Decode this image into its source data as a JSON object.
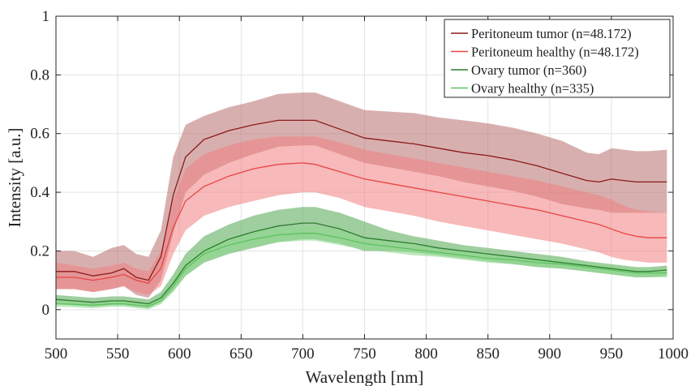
{
  "chart_data": {
    "type": "area",
    "xlabel": "Wavelength [nm]",
    "ylabel": "Intensity [a.u.]",
    "xlim": [
      500,
      1000
    ],
    "ylim": [
      -0.1,
      1.0
    ],
    "x_ticks": [
      500,
      550,
      600,
      650,
      700,
      750,
      800,
      850,
      900,
      950,
      1000
    ],
    "y_ticks": [
      0,
      0.2,
      0.4,
      0.6,
      0.8,
      1
    ],
    "x_tick_labels": [
      "500",
      "550",
      "600",
      "650",
      "700",
      "750",
      "800",
      "850",
      "900",
      "950",
      "1000"
    ],
    "y_tick_labels": [
      "0",
      "0.2",
      "0.4",
      "0.6",
      "0.8",
      "1"
    ],
    "grid": true,
    "legend_position": "top-right",
    "x": [
      500,
      515,
      530,
      545,
      555,
      565,
      575,
      585,
      595,
      605,
      620,
      640,
      660,
      680,
      700,
      710,
      730,
      750,
      770,
      790,
      810,
      830,
      850,
      870,
      890,
      910,
      930,
      940,
      950,
      960,
      970,
      980,
      995
    ],
    "series": [
      {
        "name": "Peritoneum tumor (n=48.172)",
        "color": "#8b1a1a",
        "band_color": "#b86e6e",
        "band_opacity": 0.55,
        "mean": [
          0.13,
          0.13,
          0.115,
          0.125,
          0.14,
          0.11,
          0.1,
          0.18,
          0.39,
          0.52,
          0.58,
          0.61,
          0.63,
          0.645,
          0.645,
          0.645,
          0.615,
          0.585,
          0.575,
          0.565,
          0.55,
          0.535,
          0.525,
          0.51,
          0.49,
          0.465,
          0.44,
          0.435,
          0.445,
          0.44,
          0.435,
          0.435,
          0.435
        ],
        "upper": [
          0.2,
          0.2,
          0.18,
          0.21,
          0.22,
          0.19,
          0.18,
          0.27,
          0.52,
          0.63,
          0.66,
          0.69,
          0.71,
          0.735,
          0.74,
          0.74,
          0.71,
          0.68,
          0.675,
          0.67,
          0.655,
          0.645,
          0.635,
          0.62,
          0.6,
          0.575,
          0.535,
          0.53,
          0.55,
          0.545,
          0.54,
          0.54,
          0.545
        ],
        "lower": [
          0.07,
          0.07,
          0.06,
          0.07,
          0.08,
          0.05,
          0.04,
          0.1,
          0.26,
          0.4,
          0.46,
          0.5,
          0.53,
          0.555,
          0.56,
          0.56,
          0.53,
          0.5,
          0.485,
          0.47,
          0.455,
          0.435,
          0.42,
          0.405,
          0.385,
          0.36,
          0.345,
          0.34,
          0.33,
          0.33,
          0.33,
          0.33,
          0.33
        ]
      },
      {
        "name": "Peritoneum healthy (n=48.172)",
        "color": "#e84545",
        "band_color": "#f08080",
        "band_opacity": 0.55,
        "mean": [
          0.11,
          0.11,
          0.1,
          0.11,
          0.12,
          0.1,
          0.09,
          0.14,
          0.28,
          0.37,
          0.42,
          0.455,
          0.48,
          0.495,
          0.5,
          0.495,
          0.47,
          0.445,
          0.43,
          0.415,
          0.4,
          0.385,
          0.37,
          0.355,
          0.34,
          0.32,
          0.3,
          0.29,
          0.275,
          0.26,
          0.25,
          0.245,
          0.245
        ],
        "upper": [
          0.16,
          0.15,
          0.14,
          0.15,
          0.16,
          0.14,
          0.13,
          0.2,
          0.37,
          0.48,
          0.53,
          0.56,
          0.58,
          0.59,
          0.59,
          0.59,
          0.57,
          0.545,
          0.53,
          0.515,
          0.5,
          0.485,
          0.47,
          0.455,
          0.44,
          0.42,
          0.4,
          0.39,
          0.375,
          0.355,
          0.34,
          0.335,
          0.33
        ],
        "lower": [
          0.07,
          0.07,
          0.06,
          0.07,
          0.08,
          0.06,
          0.05,
          0.08,
          0.19,
          0.27,
          0.32,
          0.35,
          0.37,
          0.39,
          0.4,
          0.4,
          0.38,
          0.35,
          0.335,
          0.32,
          0.3,
          0.285,
          0.27,
          0.255,
          0.24,
          0.225,
          0.205,
          0.195,
          0.18,
          0.17,
          0.165,
          0.16,
          0.16
        ]
      },
      {
        "name": "Ovary tumor (n=360)",
        "color": "#2e7d2e",
        "band_color": "#5fae5f",
        "band_opacity": 0.6,
        "mean": [
          0.035,
          0.03,
          0.025,
          0.03,
          0.03,
          0.025,
          0.02,
          0.04,
          0.09,
          0.15,
          0.2,
          0.24,
          0.265,
          0.285,
          0.295,
          0.295,
          0.275,
          0.245,
          0.235,
          0.225,
          0.21,
          0.2,
          0.19,
          0.18,
          0.17,
          0.16,
          0.15,
          0.145,
          0.14,
          0.135,
          0.13,
          0.13,
          0.135
        ],
        "upper": [
          0.05,
          0.045,
          0.04,
          0.045,
          0.045,
          0.04,
          0.035,
          0.06,
          0.12,
          0.19,
          0.25,
          0.29,
          0.32,
          0.34,
          0.35,
          0.35,
          0.33,
          0.3,
          0.27,
          0.25,
          0.235,
          0.22,
          0.21,
          0.2,
          0.19,
          0.18,
          0.165,
          0.16,
          0.155,
          0.15,
          0.145,
          0.145,
          0.15
        ],
        "lower": [
          0.02,
          0.015,
          0.01,
          0.015,
          0.015,
          0.01,
          0.005,
          0.025,
          0.065,
          0.115,
          0.16,
          0.19,
          0.21,
          0.23,
          0.24,
          0.24,
          0.225,
          0.2,
          0.2,
          0.195,
          0.185,
          0.175,
          0.165,
          0.155,
          0.145,
          0.14,
          0.13,
          0.125,
          0.12,
          0.115,
          0.11,
          0.11,
          0.115
        ]
      },
      {
        "name": "Ovary healthy (n=335)",
        "color": "#5cc25c",
        "band_color": "#8fd98f",
        "band_opacity": 0.6,
        "mean": [
          0.02,
          0.018,
          0.015,
          0.02,
          0.02,
          0.015,
          0.012,
          0.03,
          0.08,
          0.14,
          0.19,
          0.22,
          0.24,
          0.255,
          0.26,
          0.26,
          0.245,
          0.225,
          0.215,
          0.205,
          0.195,
          0.185,
          0.175,
          0.17,
          0.16,
          0.155,
          0.145,
          0.14,
          0.135,
          0.13,
          0.125,
          0.125,
          0.125
        ],
        "upper": [
          0.03,
          0.028,
          0.025,
          0.03,
          0.03,
          0.025,
          0.022,
          0.045,
          0.1,
          0.165,
          0.215,
          0.245,
          0.265,
          0.28,
          0.285,
          0.285,
          0.27,
          0.245,
          0.235,
          0.225,
          0.21,
          0.2,
          0.19,
          0.185,
          0.175,
          0.17,
          0.16,
          0.155,
          0.15,
          0.145,
          0.14,
          0.14,
          0.14
        ],
        "lower": [
          0.01,
          0.008,
          0.005,
          0.01,
          0.01,
          0.005,
          0.002,
          0.018,
          0.06,
          0.115,
          0.165,
          0.195,
          0.215,
          0.23,
          0.235,
          0.235,
          0.22,
          0.205,
          0.195,
          0.185,
          0.18,
          0.17,
          0.16,
          0.155,
          0.145,
          0.14,
          0.13,
          0.125,
          0.12,
          0.115,
          0.11,
          0.11,
          0.11
        ]
      }
    ]
  }
}
